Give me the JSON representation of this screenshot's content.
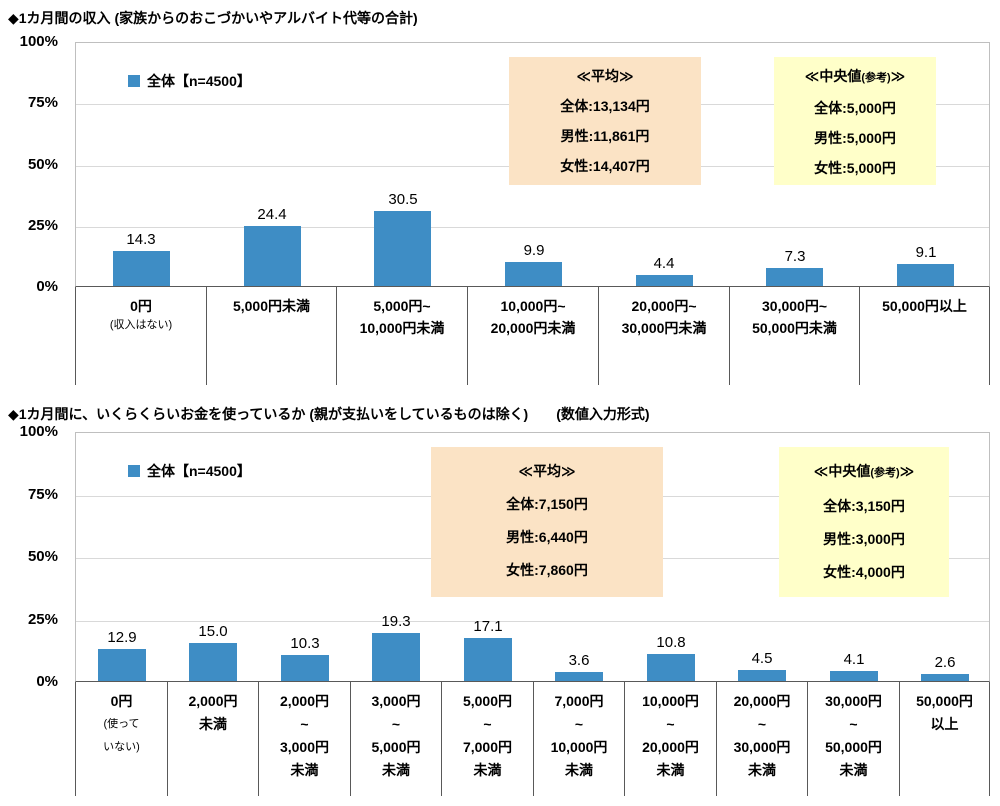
{
  "colors": {
    "bar": "#3E8DC5",
    "average_box": "#FBE3C5",
    "median_box": "#FFFFC9"
  },
  "chart_data": [
    {
      "type": "bar",
      "title": "◆1カ月間の収入 (家族からのおこづかいやアルバイト代等の合計)",
      "legend": "全体【n=4500】",
      "xlabel": "",
      "ylabel": "",
      "ylim": [
        0,
        100
      ],
      "grid": true,
      "y_tick_labels": [
        "100%",
        "75%",
        "50%",
        "25%",
        "0%"
      ],
      "categories": [
        "0円(収入はない)",
        "5,000円未満",
        "5,000円~10,000円未満",
        "10,000円~20,000円未満",
        "20,000円~30,000円未満",
        "30,000円~50,000円未満",
        "50,000円以上"
      ],
      "category_lines": [
        [
          "0円",
          "(収入はない)"
        ],
        [
          "5,000円未満"
        ],
        [
          "5,000円~",
          "10,000円未満"
        ],
        [
          "10,000円~",
          "20,000円未満"
        ],
        [
          "20,000円~",
          "30,000円未満"
        ],
        [
          "30,000円~",
          "50,000円未満"
        ],
        [
          "50,000円以上"
        ]
      ],
      "values": [
        14.3,
        24.4,
        30.5,
        9.9,
        4.4,
        7.3,
        9.1
      ],
      "value_labels": [
        "14.3",
        "24.4",
        "30.5",
        "9.9",
        "4.4",
        "7.3",
        "9.1"
      ],
      "boxes": {
        "average": {
          "title": "≪平均≫",
          "title_small": "",
          "title_end": "",
          "lines": [
            "全体:13,134円",
            "男性:11,861円",
            "女性:14,407円"
          ]
        },
        "median": {
          "title": "≪中央値",
          "title_small": "(参考)",
          "title_end": "≫",
          "lines": [
            "全体:5,000円",
            "男性:5,000円",
            "女性:5,000円"
          ]
        }
      }
    },
    {
      "type": "bar",
      "title": "◆1カ月間に、いくらくらいお金を使っているか (親が支払いをしているものは除く)　　(数値入力形式)",
      "legend": "全体【n=4500】",
      "xlabel": "",
      "ylabel": "",
      "ylim": [
        0,
        100
      ],
      "grid": true,
      "y_tick_labels": [
        "100%",
        "75%",
        "50%",
        "25%",
        "0%"
      ],
      "categories": [
        "0円(使っていない)",
        "2,000円未満",
        "2,000円~3,000円未満",
        "3,000円~5,000円未満",
        "5,000円~7,000円未満",
        "7,000円~10,000円未満",
        "10,000円~20,000円未満",
        "20,000円~30,000円未満",
        "30,000円~50,000円未満",
        "50,000円以上"
      ],
      "category_lines": [
        [
          "0円",
          "(使って",
          "いない)"
        ],
        [
          "2,000円",
          "未満"
        ],
        [
          "2,000円",
          "~",
          "3,000円",
          "未満"
        ],
        [
          "3,000円",
          "~",
          "5,000円",
          "未満"
        ],
        [
          "5,000円",
          "~",
          "7,000円",
          "未満"
        ],
        [
          "7,000円",
          "~",
          "10,000円",
          "未満"
        ],
        [
          "10,000円",
          "~",
          "20,000円",
          "未満"
        ],
        [
          "20,000円",
          "~",
          "30,000円",
          "未満"
        ],
        [
          "30,000円",
          "~",
          "50,000円",
          "未満"
        ],
        [
          "50,000円",
          "以上"
        ]
      ],
      "values": [
        12.9,
        15.0,
        10.3,
        19.3,
        17.1,
        3.6,
        10.8,
        4.5,
        4.1,
        2.6
      ],
      "value_labels": [
        "12.9",
        "15.0",
        "10.3",
        "19.3",
        "17.1",
        "3.6",
        "10.8",
        "4.5",
        "4.1",
        "2.6"
      ],
      "boxes": {
        "average": {
          "title": "≪平均≫",
          "title_small": "",
          "title_end": "",
          "lines": [
            "全体:7,150円",
            "男性:6,440円",
            "女性:7,860円"
          ]
        },
        "median": {
          "title": "≪中央値",
          "title_small": "(参考)",
          "title_end": "≫",
          "lines": [
            "全体:3,150円",
            "男性:3,000円",
            "女性:4,000円"
          ]
        }
      }
    }
  ]
}
